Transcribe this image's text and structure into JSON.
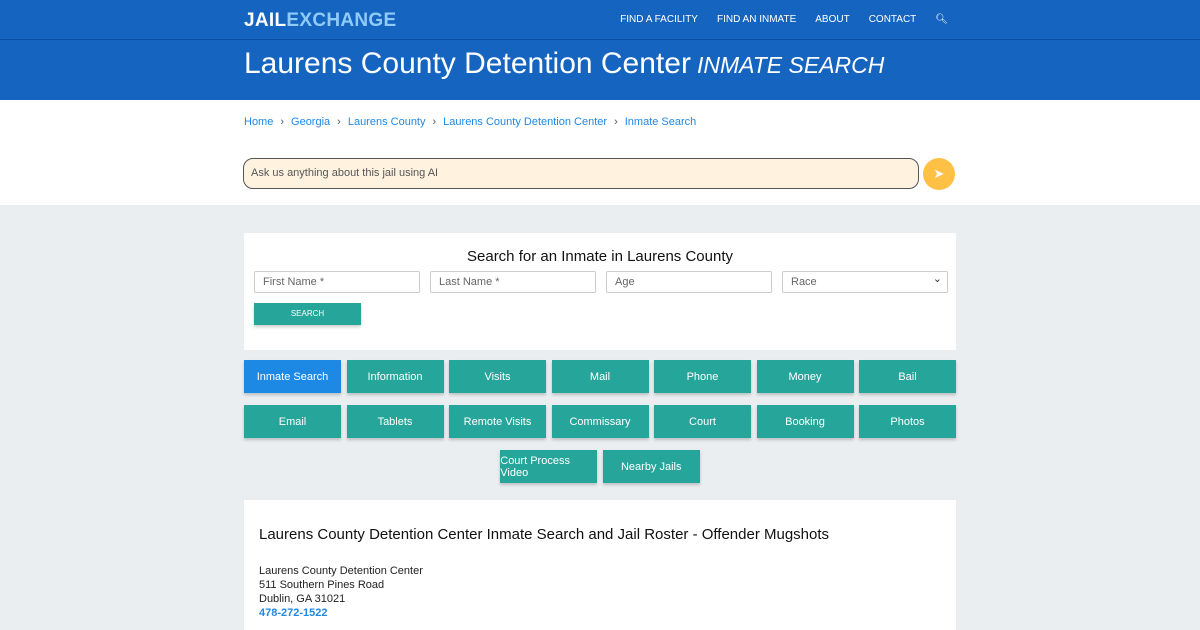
{
  "logo": {
    "part1": "JAIL",
    "part2": "EXCHANGE"
  },
  "nav": [
    "FIND A FACILITY",
    "FIND AN INMATE",
    "ABOUT",
    "CONTACT"
  ],
  "header": {
    "title": "Laurens County Detention Center",
    "subtitle": "INMATE SEARCH"
  },
  "breadcrumbs": [
    "Home",
    "Georgia",
    "Laurens County",
    "Laurens County Detention Center",
    "Inmate Search"
  ],
  "ai": {
    "placeholder": "Ask us anything about this jail using AI"
  },
  "search": {
    "heading": "Search for an Inmate in Laurens County",
    "first": "First Name *",
    "last": "Last Name *",
    "age": "Age",
    "race": "Race",
    "button": "SEARCH"
  },
  "buttons": [
    [
      "Inmate Search",
      "Information",
      "Visits",
      "Mail",
      "Phone",
      "Money",
      "Bail"
    ],
    [
      "Email",
      "Tablets",
      "Remote Visits",
      "Commissary",
      "Court",
      "Booking",
      "Photos"
    ],
    [
      "Court Process Video",
      "Nearby Jails"
    ]
  ],
  "info": {
    "heading": "Laurens County Detention Center Inmate Search and Jail Roster - Offender Mugshots",
    "name": "Laurens County Detention Center",
    "street": "511 Southern Pines Road",
    "city": "Dublin, GA 31021",
    "phone": "478-272-1522"
  }
}
